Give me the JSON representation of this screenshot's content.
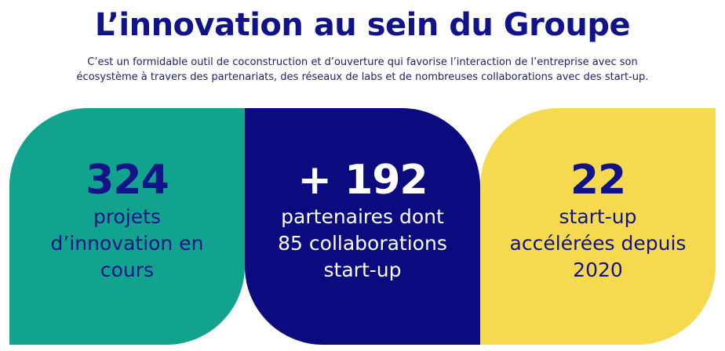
{
  "header": {
    "title": "L’innovation au sein du Groupe",
    "intro_line1": "C’est un formidable outil de coconstruction et d’ouverture qui favorise l’interaction de l’entreprise avec son",
    "intro_line2": "écosystème à travers des partenariats, des réseaux de labs et de nombreuses collaborations avec des start-up."
  },
  "cards": [
    {
      "value": "324",
      "lines": [
        "projets",
        "d’innovation en",
        "cours"
      ]
    },
    {
      "value": "+ 192",
      "lines": [
        "partenaires dont",
        "85 collaborations",
        "start-up"
      ]
    },
    {
      "value": "22",
      "lines": [
        "start-up",
        "accélérées depuis",
        "2020"
      ]
    }
  ],
  "colors": {
    "title": "#11138a",
    "green": "#12a38e",
    "navy": "#0b0a7e",
    "yellow": "#f5d94f"
  }
}
